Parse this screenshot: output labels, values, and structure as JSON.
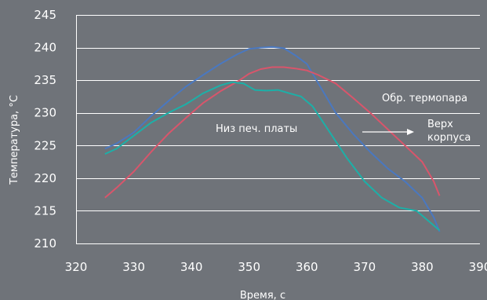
{
  "chart_data": {
    "type": "line",
    "xlabel": "Время, с",
    "ylabel": "Температура, °C",
    "xlim": [
      320,
      390
    ],
    "ylim": [
      210,
      245
    ],
    "x_ticks": [
      "320",
      "330",
      "340",
      "350",
      "360",
      "370",
      "380",
      "390"
    ],
    "y_ticks": [
      "245",
      "240",
      "235",
      "230",
      "225",
      "220",
      "215",
      "210"
    ],
    "grid": "horizontal",
    "series": [
      {
        "name": "Верх корпуса",
        "color": "#4a78c0",
        "x": [
          325,
          327,
          330,
          333,
          336,
          339,
          342,
          345,
          348,
          350,
          352,
          354,
          356,
          358,
          360,
          362,
          365,
          368,
          371,
          374,
          377,
          380,
          382,
          383
        ],
        "y": [
          224.5,
          225.3,
          227.0,
          229.5,
          231.8,
          234.0,
          235.8,
          237.5,
          239.0,
          239.8,
          240.0,
          240.1,
          239.9,
          238.8,
          237.5,
          234.5,
          230.0,
          226.8,
          224.0,
          221.5,
          219.5,
          217.0,
          214.0,
          211.8
        ]
      },
      {
        "name": "Обр. термопара",
        "color": "#d9556b",
        "x": [
          325,
          327,
          330,
          333,
          336,
          339,
          342,
          345,
          348,
          350,
          352,
          354,
          356,
          358,
          360,
          362,
          365,
          368,
          371,
          374,
          377,
          380,
          382,
          383
        ],
        "y": [
          217.0,
          218.5,
          221.0,
          224.0,
          226.8,
          229.2,
          231.5,
          233.3,
          234.8,
          236.0,
          236.7,
          237.0,
          237.0,
          236.8,
          236.5,
          235.8,
          234.5,
          232.3,
          230.0,
          227.5,
          225.0,
          222.5,
          219.5,
          217.3
        ]
      },
      {
        "name": "Низ печ. платы",
        "color": "#1cb0a8",
        "x": [
          325,
          327,
          330,
          333,
          336,
          339,
          342,
          345,
          347,
          349,
          351,
          353,
          355,
          357,
          359,
          361,
          364,
          367,
          370,
          373,
          376,
          379,
          381,
          383
        ],
        "y": [
          223.7,
          224.5,
          226.5,
          228.5,
          230.0,
          231.3,
          233.0,
          234.2,
          234.7,
          234.5,
          233.5,
          233.4,
          233.5,
          233.0,
          232.5,
          231.0,
          227.0,
          223.0,
          219.5,
          217.0,
          215.5,
          215.0,
          213.5,
          212.0
        ]
      }
    ],
    "annotations": [
      {
        "text": "Обр. термопара"
      },
      {
        "text": "Низ печ. платы"
      },
      {
        "text": "Верх"
      },
      {
        "text": "корпуса"
      }
    ]
  }
}
